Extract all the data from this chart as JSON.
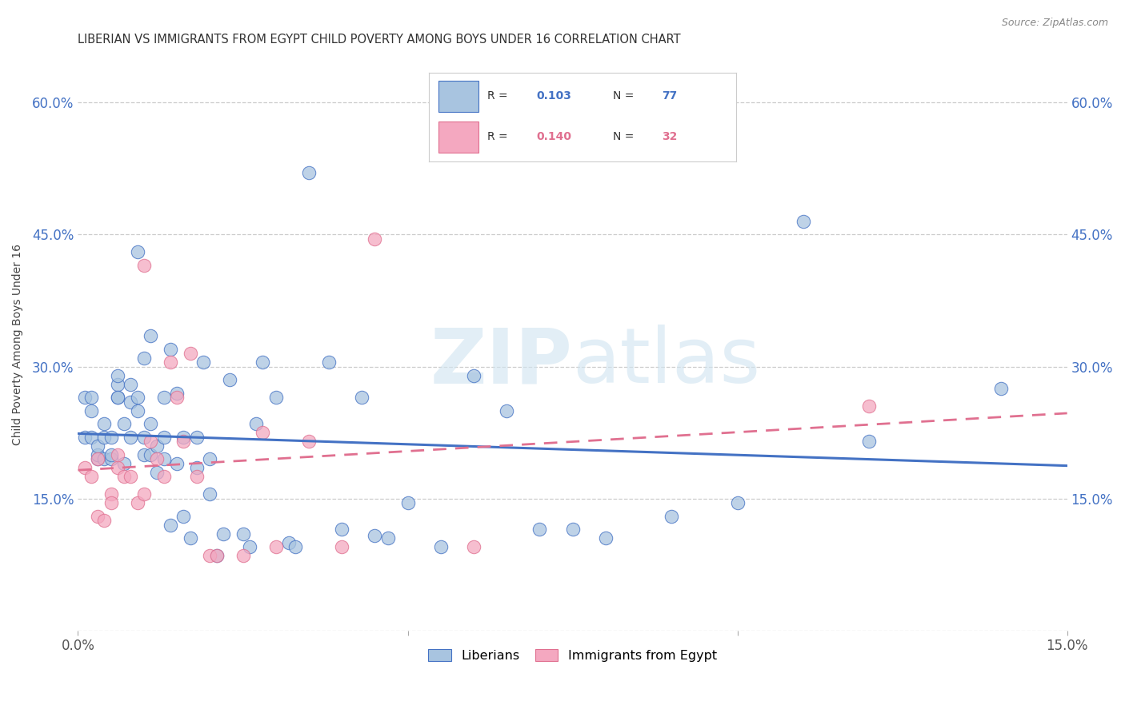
{
  "title": "LIBERIAN VS IMMIGRANTS FROM EGYPT CHILD POVERTY AMONG BOYS UNDER 16 CORRELATION CHART",
  "source": "Source: ZipAtlas.com",
  "ylabel": "Child Poverty Among Boys Under 16",
  "xlim": [
    0,
    0.15
  ],
  "ylim": [
    0,
    0.65
  ],
  "xtick_positions": [
    0.0,
    0.05,
    0.1,
    0.15
  ],
  "xtick_labels": [
    "0.0%",
    "",
    "",
    "15.0%"
  ],
  "ytick_positions": [
    0.0,
    0.15,
    0.3,
    0.45,
    0.6
  ],
  "ytick_labels": [
    "",
    "15.0%",
    "30.0%",
    "45.0%",
    "60.0%"
  ],
  "liberian_color": "#a8c4e0",
  "egypt_color": "#f4a8c0",
  "liberian_line_color": "#4472c4",
  "egypt_line_color": "#e07090",
  "background_color": "#ffffff",
  "watermark": "ZIPatlas",
  "legend_R1": "0.103",
  "legend_N1": "77",
  "legend_R2": "0.140",
  "legend_N2": "32",
  "liberian_label": "Liberians",
  "egypt_label": "Immigrants from Egypt",
  "liberian_x": [
    0.001,
    0.001,
    0.002,
    0.002,
    0.002,
    0.003,
    0.003,
    0.003,
    0.004,
    0.004,
    0.004,
    0.005,
    0.005,
    0.005,
    0.006,
    0.006,
    0.006,
    0.006,
    0.007,
    0.007,
    0.008,
    0.008,
    0.008,
    0.009,
    0.009,
    0.009,
    0.01,
    0.01,
    0.01,
    0.011,
    0.011,
    0.011,
    0.012,
    0.012,
    0.013,
    0.013,
    0.013,
    0.014,
    0.014,
    0.015,
    0.015,
    0.016,
    0.016,
    0.017,
    0.018,
    0.018,
    0.019,
    0.02,
    0.02,
    0.021,
    0.022,
    0.023,
    0.025,
    0.026,
    0.027,
    0.028,
    0.03,
    0.032,
    0.033,
    0.035,
    0.038,
    0.04,
    0.043,
    0.045,
    0.047,
    0.05,
    0.055,
    0.06,
    0.065,
    0.07,
    0.075,
    0.08,
    0.09,
    0.1,
    0.11,
    0.12,
    0.14
  ],
  "liberian_y": [
    0.265,
    0.22,
    0.265,
    0.22,
    0.25,
    0.195,
    0.2,
    0.21,
    0.195,
    0.22,
    0.235,
    0.195,
    0.22,
    0.2,
    0.265,
    0.28,
    0.265,
    0.29,
    0.19,
    0.235,
    0.26,
    0.28,
    0.22,
    0.43,
    0.265,
    0.25,
    0.2,
    0.22,
    0.31,
    0.235,
    0.335,
    0.2,
    0.18,
    0.21,
    0.22,
    0.195,
    0.265,
    0.12,
    0.32,
    0.27,
    0.19,
    0.22,
    0.13,
    0.105,
    0.185,
    0.22,
    0.305,
    0.195,
    0.155,
    0.085,
    0.11,
    0.285,
    0.11,
    0.095,
    0.235,
    0.305,
    0.265,
    0.1,
    0.095,
    0.52,
    0.305,
    0.115,
    0.265,
    0.108,
    0.105,
    0.145,
    0.095,
    0.29,
    0.25,
    0.115,
    0.115,
    0.105,
    0.13,
    0.145,
    0.465,
    0.215,
    0.275
  ],
  "egypt_x": [
    0.001,
    0.002,
    0.003,
    0.003,
    0.004,
    0.005,
    0.005,
    0.006,
    0.006,
    0.007,
    0.008,
    0.009,
    0.01,
    0.01,
    0.011,
    0.012,
    0.013,
    0.014,
    0.015,
    0.016,
    0.017,
    0.018,
    0.02,
    0.021,
    0.025,
    0.028,
    0.03,
    0.035,
    0.04,
    0.045,
    0.06,
    0.12
  ],
  "egypt_y": [
    0.185,
    0.175,
    0.195,
    0.13,
    0.125,
    0.155,
    0.145,
    0.185,
    0.2,
    0.175,
    0.175,
    0.145,
    0.415,
    0.155,
    0.215,
    0.195,
    0.175,
    0.305,
    0.265,
    0.215,
    0.315,
    0.175,
    0.085,
    0.085,
    0.085,
    0.225,
    0.095,
    0.215,
    0.095,
    0.445,
    0.095,
    0.255
  ]
}
